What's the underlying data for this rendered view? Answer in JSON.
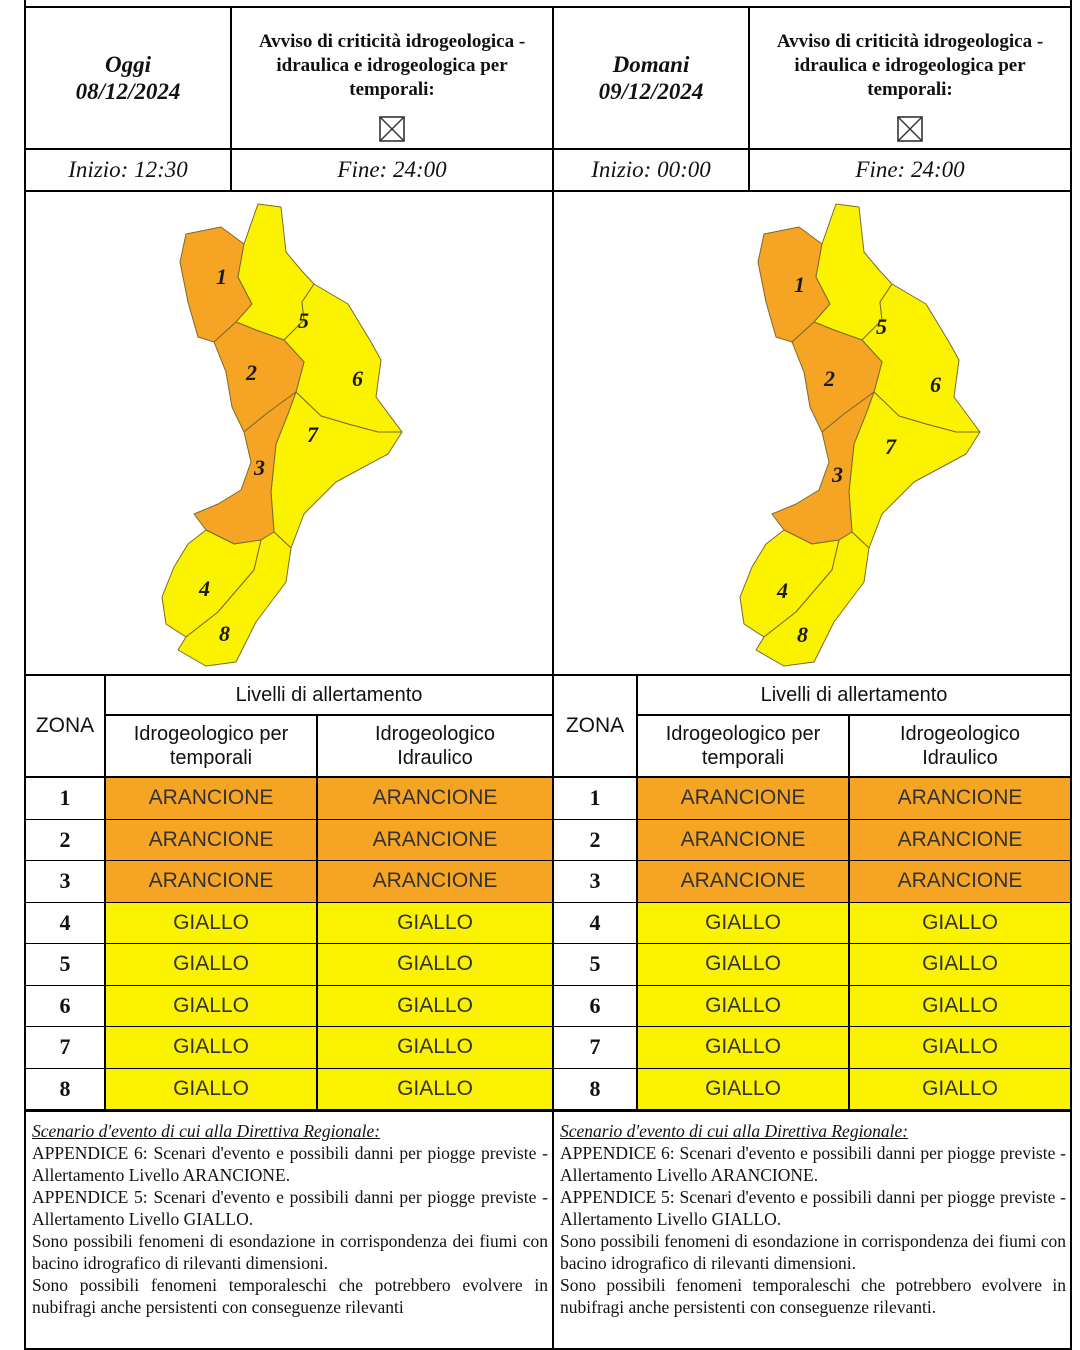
{
  "colors": {
    "orange": "#f5a423",
    "yellow": "#fbf200",
    "border": "#000000"
  },
  "days": [
    {
      "label": "Oggi",
      "date": "08/12/2024",
      "notice": [
        "Avviso di criticità idrogeologica -",
        "idraulica e idrogeologica per",
        "temporali:"
      ],
      "checkbox_icon": "empty-crossed-checkbox-icon",
      "start": "Inizio: 12:30",
      "end": "Fine: 24:00",
      "table": {
        "zona_header": "ZONA",
        "levels_header": "Livelli di allertamento",
        "col_a": [
          "Idrogeologico per",
          "temporali"
        ],
        "col_b": [
          "Idrogeologico",
          "Idraulico"
        ],
        "rows": [
          {
            "zone": "1",
            "a": "ARANCIONE",
            "b": "ARANCIONE",
            "level": "orange"
          },
          {
            "zone": "2",
            "a": "ARANCIONE",
            "b": "ARANCIONE",
            "level": "orange"
          },
          {
            "zone": "3",
            "a": "ARANCIONE",
            "b": "ARANCIONE",
            "level": "orange"
          },
          {
            "zone": "4",
            "a": "GIALLO",
            "b": "GIALLO",
            "level": "yellow"
          },
          {
            "zone": "5",
            "a": "GIALLO",
            "b": "GIALLO",
            "level": "yellow"
          },
          {
            "zone": "6",
            "a": "GIALLO",
            "b": "GIALLO",
            "level": "yellow"
          },
          {
            "zone": "7",
            "a": "GIALLO",
            "b": "GIALLO",
            "level": "yellow"
          },
          {
            "zone": "8",
            "a": "GIALLO",
            "b": "GIALLO",
            "level": "yellow"
          }
        ]
      },
      "scenario": {
        "title": "Scenario d'evento di cui alla Direttiva Regionale:",
        "lines": [
          "APPENDICE 6: Scenari d'evento e possibili danni per piogge previste - Allertamento Livello ARANCIONE.",
          "APPENDICE 5: Scenari d'evento e possibili danni per piogge previste - Allertamento Livello GIALLO.",
          "Sono possibili fenomeni di esondazione in corrispondenza dei fiumi con bacino idrografico di rilevanti dimensioni.",
          "Sono possibili fenomeni temporaleschi che potrebbero evolvere in nubifragi anche persistenti con conseguenze rilevanti"
        ]
      }
    },
    {
      "label": "Domani",
      "date": "09/12/2024",
      "notice": [
        "Avviso di criticità idrogeologica -",
        "idraulica e idrogeologica per",
        "temporali:"
      ],
      "checkbox_icon": "empty-crossed-checkbox-icon",
      "start": "Inizio: 00:00",
      "end": "Fine: 24:00",
      "table": {
        "zona_header": "ZONA",
        "levels_header": "Livelli di allertamento",
        "col_a": [
          "Idrogeologico per",
          "temporali"
        ],
        "col_b": [
          "Idrogeologico",
          "Idraulico"
        ],
        "rows": [
          {
            "zone": "1",
            "a": "ARANCIONE",
            "b": "ARANCIONE",
            "level": "orange"
          },
          {
            "zone": "2",
            "a": "ARANCIONE",
            "b": "ARANCIONE",
            "level": "orange"
          },
          {
            "zone": "3",
            "a": "ARANCIONE",
            "b": "ARANCIONE",
            "level": "orange"
          },
          {
            "zone": "4",
            "a": "GIALLO",
            "b": "GIALLO",
            "level": "yellow"
          },
          {
            "zone": "5",
            "a": "GIALLO",
            "b": "GIALLO",
            "level": "yellow"
          },
          {
            "zone": "6",
            "a": "GIALLO",
            "b": "GIALLO",
            "level": "yellow"
          },
          {
            "zone": "7",
            "a": "GIALLO",
            "b": "GIALLO",
            "level": "yellow"
          },
          {
            "zone": "8",
            "a": "GIALLO",
            "b": "GIALLO",
            "level": "yellow"
          }
        ]
      },
      "scenario": {
        "title": "Scenario d'evento di cui alla Direttiva Regionale:",
        "lines": [
          "APPENDICE 6: Scenari d'evento e possibili danni per piogge previste - Allertamento Livello ARANCIONE.",
          "APPENDICE 5: Scenari d'evento e possibili danni per piogge previste - Allertamento Livello GIALLO.",
          "Sono possibili fenomeni di esondazione in corrispondenza dei fiumi con bacino idrografico di rilevanti dimensioni.",
          "Sono possibili fenomeni temporaleschi che potrebbero evolvere in nubifragi anche persistenti con conseguenze rilevanti."
        ]
      }
    }
  ]
}
